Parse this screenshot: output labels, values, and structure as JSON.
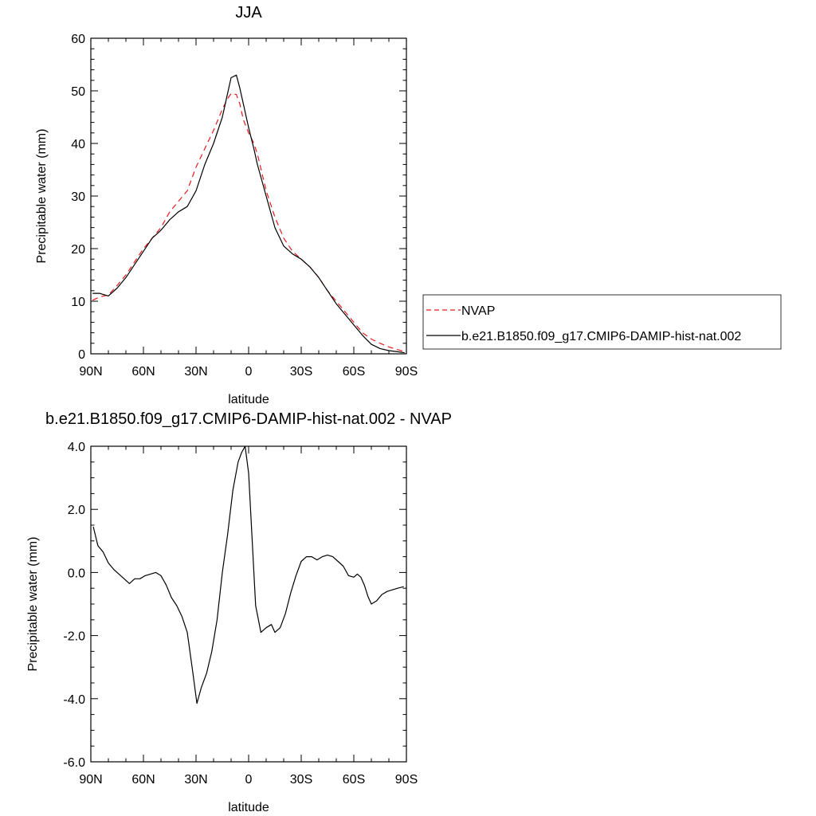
{
  "chart_data": [
    {
      "type": "line",
      "title": "JJA",
      "xlabel": "latitude",
      "ylabel": "Precipitable water (mm)",
      "xlim": [
        90,
        -90
      ],
      "ylim": [
        0,
        60
      ],
      "xticks": [
        90,
        60,
        30,
        0,
        -30,
        -60,
        -90
      ],
      "xtick_labels": [
        "90N",
        "60N",
        "30N",
        "0",
        "30S",
        "60S",
        "90S"
      ],
      "yticks": [
        0,
        10,
        20,
        30,
        40,
        50,
        60
      ],
      "ytick_labels": [
        "0",
        "10",
        "20",
        "30",
        "40",
        "50",
        "60"
      ],
      "legend": "right",
      "series": [
        {
          "name": "NVAP",
          "color": "#e8191c",
          "style": "dashed",
          "x": [
            89,
            85,
            80,
            75,
            70,
            65,
            60,
            55,
            50,
            45,
            40,
            35,
            30,
            25,
            20,
            15,
            12,
            10,
            7,
            5,
            3,
            0,
            -3,
            -5,
            -10,
            -15,
            -20,
            -25,
            -30,
            -35,
            -40,
            -45,
            -50,
            -55,
            -60,
            -65,
            -70,
            -75,
            -80,
            -85,
            -89
          ],
          "y": [
            10.2,
            10.8,
            11.2,
            13.0,
            15.0,
            17.5,
            20.0,
            22.0,
            24.0,
            27.0,
            29.0,
            31.0,
            35.5,
            39.0,
            42.5,
            46.5,
            48.5,
            49.5,
            49.3,
            47.5,
            44.5,
            42.0,
            40.0,
            38.0,
            31.0,
            26.0,
            22.0,
            19.5,
            18.0,
            16.5,
            14.5,
            12.0,
            10.0,
            8.0,
            6.0,
            4.0,
            2.8,
            2.0,
            1.3,
            0.8,
            0.4
          ]
        },
        {
          "name": "b.e21.B1850.f09_g17.CMIP6-DAMIP-hist-nat.002",
          "color": "#000000",
          "style": "solid",
          "x": [
            89,
            85,
            80,
            75,
            70,
            65,
            60,
            55,
            50,
            45,
            40,
            35,
            30,
            25,
            20,
            15,
            12,
            10,
            7,
            5,
            3,
            0,
            -3,
            -5,
            -10,
            -15,
            -20,
            -25,
            -30,
            -35,
            -40,
            -45,
            -50,
            -55,
            -60,
            -65,
            -70,
            -75,
            -80,
            -85,
            -89
          ],
          "y": [
            11.5,
            11.5,
            11.0,
            12.5,
            14.5,
            17.0,
            19.5,
            22.0,
            23.5,
            25.5,
            27.0,
            28.0,
            31.0,
            36.0,
            40.0,
            45.0,
            49.5,
            52.5,
            53.0,
            50.5,
            47.5,
            43.0,
            39.0,
            36.0,
            30.0,
            24.0,
            20.5,
            19.0,
            18.0,
            16.5,
            14.5,
            12.0,
            9.5,
            7.5,
            5.5,
            3.5,
            1.8,
            1.0,
            0.6,
            0.4,
            0.2
          ]
        }
      ]
    },
    {
      "type": "line",
      "title": "b.e21.B1850.f09_g17.CMIP6-DAMIP-hist-nat.002 - NVAP",
      "xlabel": "latitude",
      "ylabel": "Precipitable water (mm)",
      "xlim": [
        90,
        -90
      ],
      "ylim": [
        -6.0,
        4.0
      ],
      "xticks": [
        90,
        60,
        30,
        0,
        -30,
        -60,
        -90
      ],
      "xtick_labels": [
        "90N",
        "60N",
        "30N",
        "0",
        "30S",
        "60S",
        "90S"
      ],
      "yticks": [
        -6.0,
        -4.0,
        -2.0,
        0.0,
        2.0,
        4.0
      ],
      "ytick_labels": [
        "-6.0",
        "-4.0",
        "-2.0",
        "0.0",
        "2.0",
        "4.0"
      ],
      "series": [
        {
          "color": "#000000",
          "style": "solid",
          "x": [
            88.6,
            86,
            83,
            80,
            77,
            74,
            71,
            68,
            65,
            62,
            59,
            56,
            53,
            50,
            47,
            44,
            41,
            38,
            35,
            32,
            29.5,
            27,
            24,
            21,
            18,
            15,
            12,
            9,
            6,
            4,
            2,
            0,
            -2,
            -4,
            -7,
            -10,
            -13,
            -15,
            -18,
            -21,
            -24,
            -27,
            -30,
            -33,
            -36,
            -39,
            -42,
            -45,
            -48,
            -51,
            -54,
            -57,
            -60,
            -62,
            -64,
            -66,
            -68,
            -70,
            -73,
            -76,
            -79,
            -82,
            -85,
            -88.5
          ],
          "y": [
            1.45,
            0.85,
            0.65,
            0.3,
            0.1,
            -0.05,
            -0.2,
            -0.35,
            -0.2,
            -0.2,
            -0.1,
            -0.05,
            0.0,
            -0.1,
            -0.4,
            -0.8,
            -1.05,
            -1.4,
            -1.9,
            -3.1,
            -4.15,
            -3.65,
            -3.2,
            -2.5,
            -1.5,
            0.0,
            1.2,
            2.6,
            3.5,
            3.8,
            4.0,
            3.15,
            1.05,
            -1.05,
            -1.9,
            -1.75,
            -1.65,
            -1.9,
            -1.75,
            -1.3,
            -0.65,
            -0.1,
            0.35,
            0.5,
            0.5,
            0.4,
            0.5,
            0.55,
            0.5,
            0.35,
            0.2,
            -0.1,
            -0.15,
            -0.05,
            -0.15,
            -0.4,
            -0.75,
            -1.0,
            -0.9,
            -0.7,
            -0.6,
            -0.55,
            -0.5,
            -0.45
          ]
        }
      ]
    }
  ]
}
